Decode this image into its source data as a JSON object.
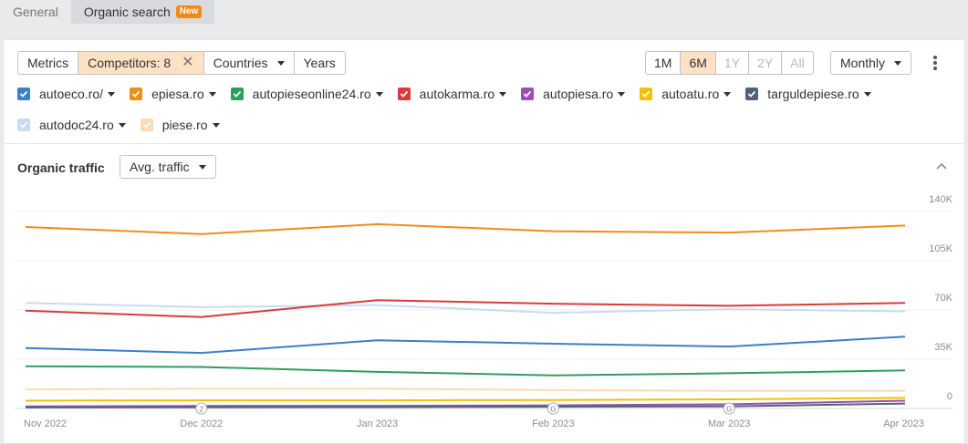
{
  "tabs": [
    {
      "label": "General"
    },
    {
      "label": "Organic search",
      "badge": "New"
    }
  ],
  "toolbar": {
    "metrics": "Metrics",
    "competitors": "Competitors: 8",
    "countries": "Countries",
    "years": "Years",
    "ranges": [
      "1M",
      "6M",
      "1Y",
      "2Y",
      "All"
    ],
    "active_range": "6M",
    "disabled_ranges": [
      "1Y",
      "2Y",
      "All"
    ],
    "interval": "Monthly"
  },
  "legend": [
    {
      "label": "autoeco.ro/",
      "color": "#3a7fc8"
    },
    {
      "label": "epiesa.ro",
      "color": "#f08c1a"
    },
    {
      "label": "autopieseonline24.ro",
      "color": "#2e9e5e"
    },
    {
      "label": "autokarma.ro",
      "color": "#d93b3b"
    },
    {
      "label": "autopiesa.ro",
      "color": "#9a4fb5"
    },
    {
      "label": "autoatu.ro",
      "color": "#f2c200"
    },
    {
      "label": "targuldepiese.ro",
      "color": "#536275"
    },
    {
      "label": "autodoc24.ro",
      "color": "#c6dcf2"
    },
    {
      "label": "piese.ro",
      "color": "#fbdcb6"
    }
  ],
  "section": {
    "title": "Organic traffic",
    "dropdown": "Avg. traffic"
  },
  "chart_data": {
    "type": "line",
    "categories": [
      "Nov 2022",
      "Dec 2022",
      "Jan 2023",
      "Feb 2023",
      "Mar 2023",
      "Apr 2023"
    ],
    "y_ticks": [
      {
        "value": 0,
        "label": "0"
      },
      {
        "value": 35000,
        "label": "35K"
      },
      {
        "value": 70000,
        "label": "70K"
      },
      {
        "value": 105000,
        "label": "105K"
      },
      {
        "value": 140000,
        "label": "140K"
      }
    ],
    "ylim": [
      0,
      140000
    ],
    "grid": true,
    "annotations": [
      {
        "category": "Dec 2022",
        "label": "2"
      },
      {
        "category": "Feb 2023",
        "label": "G"
      },
      {
        "category": "Mar 2023",
        "label": "G"
      }
    ],
    "series": [
      {
        "name": "autodoc24.ro",
        "color": "#c6dcf2",
        "values": [
          75000,
          72000,
          73500,
          68000,
          70500,
          69000
        ]
      },
      {
        "name": "piese.ro",
        "color": "#fbdcb6",
        "values": [
          13500,
          14000,
          14000,
          13000,
          12500,
          12500
        ]
      },
      {
        "name": "epiesa.ro",
        "color": "#f08c1a",
        "values": [
          129000,
          124000,
          131000,
          126000,
          125000,
          130000
        ]
      },
      {
        "name": "autokarma.ro",
        "color": "#d93b3b",
        "values": [
          69500,
          65000,
          77000,
          74500,
          73000,
          75000
        ]
      },
      {
        "name": "autoeco.ro/",
        "color": "#3a7fc8",
        "values": [
          43000,
          39500,
          48500,
          46000,
          44000,
          51000
        ]
      },
      {
        "name": "autopieseonline24.ro",
        "color": "#2e9e5e",
        "values": [
          30000,
          29500,
          26000,
          23500,
          25000,
          27000
        ]
      },
      {
        "name": "autoatu.ro",
        "color": "#f2c200",
        "values": [
          5500,
          5800,
          5800,
          6000,
          6500,
          7500
        ]
      },
      {
        "name": "autopiesa.ro",
        "color": "#9a4fb5",
        "values": [
          1500,
          1800,
          1900,
          2200,
          3000,
          5500
        ]
      },
      {
        "name": "targuldepiese.ro",
        "color": "#536275",
        "values": [
          700,
          900,
          1000,
          1200,
          1500,
          3500
        ]
      }
    ]
  }
}
